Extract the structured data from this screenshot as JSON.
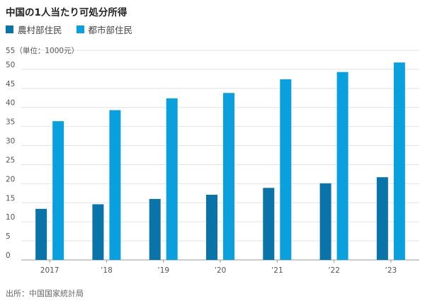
{
  "chart_data": {
    "type": "bar",
    "title": "中国の1人当たり可処分所得",
    "unit_note": "（単位：1000元）",
    "source": "出所：中国国家統計局",
    "categories": [
      "2017",
      "’18",
      "’19",
      "’20",
      "’21",
      "’22",
      "’23"
    ],
    "series": [
      {
        "name": "農村部住民",
        "color": "#0a74a8",
        "values": [
          13.4,
          14.6,
          16.0,
          17.1,
          18.9,
          20.1,
          21.7
        ]
      },
      {
        "name": "都市部住民",
        "color": "#0aa0de",
        "values": [
          36.4,
          39.3,
          42.4,
          43.8,
          47.4,
          49.3,
          51.8
        ]
      }
    ],
    "ylim": [
      0,
      55
    ],
    "yticks": [
      0,
      5,
      10,
      15,
      20,
      25,
      30,
      35,
      40,
      45,
      50,
      55
    ],
    "grid": true,
    "legend_position": "top-left"
  }
}
